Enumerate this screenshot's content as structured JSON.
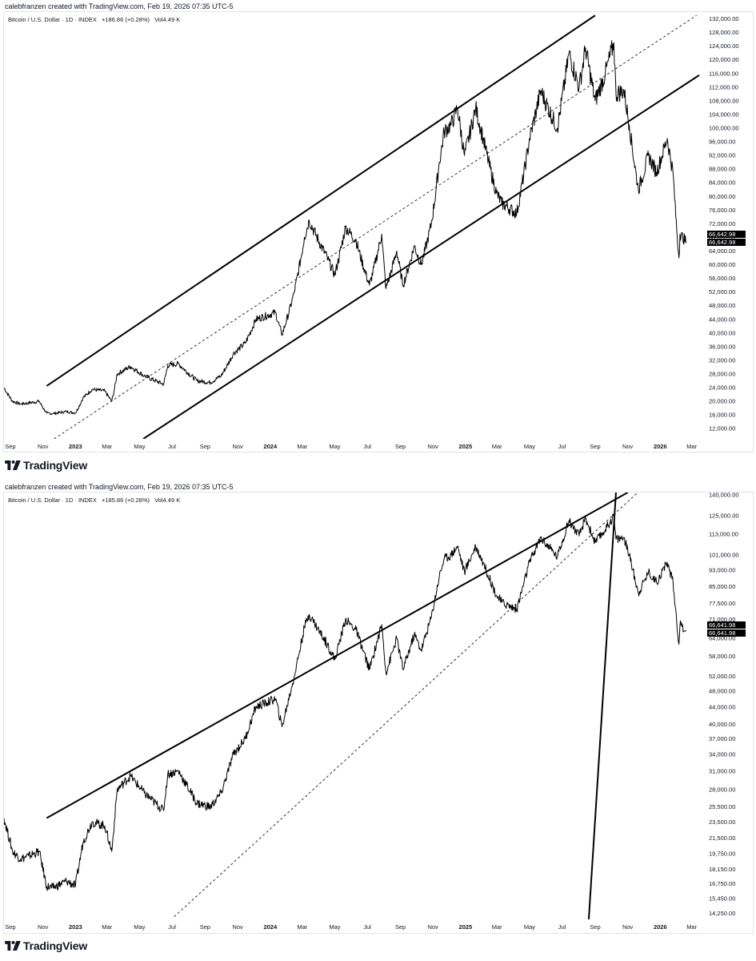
{
  "brand": {
    "name": "TradingView",
    "logo_icon": "tradingview-logo-icon",
    "text_color": "#131722"
  },
  "colors": {
    "price_line": "#000000",
    "trendline": "#000000",
    "dashed_line": "#000000",
    "last_price_tag_bg": "#000000",
    "last_price_tag_text": "#ffffff",
    "background": "#ffffff",
    "border": "#e0e3eb"
  },
  "chart_data": [
    {
      "type": "line",
      "credit": "calebfranzen created with TradingView.com, Feb 19, 2026 07:35 UTC-5",
      "legend": {
        "symbol": "Bitcoin / U.S. Dollar · 1D · INDEX",
        "change": "+186.86 (+0.28%)",
        "volume_label": "Vol",
        "volume": "4.49 K"
      },
      "scale": "linear",
      "grid": false,
      "legend_position": "top-left",
      "ylim": [
        9000,
        134000
      ],
      "xlim": [
        "2022-08-20",
        "2026-03-21"
      ],
      "x_ticks": [
        "Sep",
        "Nov",
        "2023",
        "Mar",
        "May",
        "Jul",
        "Sep",
        "Nov",
        "2024",
        "Mar",
        "May",
        "Jul",
        "Sep",
        "Nov",
        "2025",
        "Mar",
        "May",
        "Jul",
        "Sep",
        "Nov",
        "2026",
        "Mar"
      ],
      "x_tick_dates": [
        "2022-09-01",
        "2022-11-01",
        "2023-01-01",
        "2023-03-01",
        "2023-05-01",
        "2023-07-01",
        "2023-09-01",
        "2023-11-01",
        "2024-01-01",
        "2024-03-01",
        "2024-05-01",
        "2024-07-01",
        "2024-09-01",
        "2024-11-01",
        "2025-01-01",
        "2025-03-01",
        "2025-05-01",
        "2025-07-01",
        "2025-09-01",
        "2025-11-01",
        "2026-01-01",
        "2026-03-01"
      ],
      "y_ticks": [
        "132,000.00",
        "128,000.00",
        "124,000.00",
        "120,000.00",
        "116,000.00",
        "112,000.00",
        "108,000.00",
        "104,000.00",
        "100,000.00",
        "96,000.00",
        "92,000.00",
        "88,000.00",
        "84,000.00",
        "80,000.00",
        "76,000.00",
        "72,000.00",
        "68,000.00",
        "64,000.00",
        "60,000.00",
        "56,000.00",
        "52,000.00",
        "48,000.00",
        "44,000.00",
        "40,000.00",
        "36,000.00",
        "32,000.00",
        "28,000.00",
        "24,000.00",
        "20,000.00",
        "16,000.00",
        "12,000.00"
      ],
      "y_tick_values": [
        132000,
        128000,
        124000,
        120000,
        116000,
        112000,
        108000,
        104000,
        100000,
        96000,
        92000,
        88000,
        84000,
        80000,
        76000,
        72000,
        68000,
        64000,
        60000,
        56000,
        52000,
        48000,
        44000,
        40000,
        36000,
        32000,
        28000,
        24000,
        20000,
        16000,
        12000
      ],
      "last_price_tags": [
        "66,642.98",
        "66,642.98"
      ],
      "series": [
        {
          "x": [
            "2022-08-20",
            "2022-09-05",
            "2022-09-20",
            "2022-10-05",
            "2022-10-25",
            "2022-11-08",
            "2022-11-20",
            "2022-12-15",
            "2023-01-01",
            "2023-01-15",
            "2023-02-01",
            "2023-02-25",
            "2023-03-10",
            "2023-03-20",
            "2023-04-14",
            "2023-05-10",
            "2023-06-15",
            "2023-06-23",
            "2023-07-13",
            "2023-08-17",
            "2023-09-11",
            "2023-10-01",
            "2023-10-24",
            "2023-11-15",
            "2023-12-05",
            "2024-01-11",
            "2024-01-23",
            "2024-02-15",
            "2024-03-05",
            "2024-03-14",
            "2024-04-17",
            "2024-05-01",
            "2024-05-21",
            "2024-06-10",
            "2024-07-05",
            "2024-07-28",
            "2024-08-05",
            "2024-08-25",
            "2024-09-06",
            "2024-09-27",
            "2024-10-10",
            "2024-10-29",
            "2024-11-13",
            "2024-11-22",
            "2024-12-05",
            "2024-12-17",
            "2024-12-30",
            "2025-01-20",
            "2025-02-03",
            "2025-02-28",
            "2025-03-10",
            "2025-04-07",
            "2025-05-01",
            "2025-05-22",
            "2025-06-22",
            "2025-07-14",
            "2025-08-02",
            "2025-08-14",
            "2025-09-01",
            "2025-09-20",
            "2025-10-06",
            "2025-10-10",
            "2025-10-25",
            "2025-11-04",
            "2025-11-21",
            "2025-12-10",
            "2025-12-25",
            "2026-01-14",
            "2026-01-25",
            "2026-02-05",
            "2026-02-07",
            "2026-02-19"
          ],
          "values": [
            24000,
            20000,
            19200,
            19500,
            20000,
            16500,
            16400,
            17000,
            16600,
            21000,
            23500,
            23000,
            20000,
            28000,
            30200,
            27500,
            25000,
            30500,
            31000,
            26000,
            25500,
            27500,
            34000,
            37000,
            44000,
            46000,
            39500,
            52000,
            68000,
            73000,
            62000,
            57000,
            71000,
            67000,
            54000,
            69000,
            53000,
            64000,
            54000,
            65500,
            60000,
            72000,
            90000,
            99000,
            101000,
            106000,
            92000,
            106000,
            97000,
            81000,
            78000,
            75000,
            97000,
            111000,
            100000,
            122000,
            112000,
            123500,
            108000,
            116000,
            125000,
            110000,
            111000,
            101000,
            82000,
            92000,
            87000,
            97000,
            87000,
            62000,
            69000,
            66643
          ]
        }
      ],
      "annotations": [
        {
          "kind": "trendline",
          "style": "solid",
          "x": [
            "2022-11-08",
            "2025-09-01"
          ],
          "y": [
            24500,
            133000
          ]
        },
        {
          "kind": "trendline",
          "style": "solid",
          "x": [
            "2023-05-08",
            "2026-03-15"
          ],
          "y": [
            9000,
            115500
          ]
        },
        {
          "kind": "trendline",
          "style": "dashed",
          "x": [
            "2022-11-22",
            "2026-03-10"
          ],
          "y": [
            9000,
            133000
          ]
        }
      ]
    },
    {
      "type": "line",
      "credit": "calebfranzen created with TradingView.com, Feb 19, 2026 07:35 UTC-5",
      "legend": {
        "symbol": "Bitcoin / U.S. Dollar · 1D · INDEX",
        "change": "+185.86 (+0.28%)",
        "volume_label": "Vol",
        "volume": "4.49 K"
      },
      "scale": "log",
      "grid": false,
      "legend_position": "top-left",
      "ylim": [
        13800,
        142000
      ],
      "xlim": [
        "2022-08-20",
        "2026-03-21"
      ],
      "x_ticks": [
        "Sep",
        "Nov",
        "2023",
        "Mar",
        "May",
        "Jul",
        "Sep",
        "Nov",
        "2024",
        "Mar",
        "May",
        "Jul",
        "Sep",
        "Nov",
        "2025",
        "Mar",
        "May",
        "Jul",
        "Sep",
        "Nov",
        "2026",
        "Mar"
      ],
      "x_tick_dates": [
        "2022-09-01",
        "2022-11-01",
        "2023-01-01",
        "2023-03-01",
        "2023-05-01",
        "2023-07-01",
        "2023-09-01",
        "2023-11-01",
        "2024-01-01",
        "2024-03-01",
        "2024-05-01",
        "2024-07-01",
        "2024-09-01",
        "2024-11-01",
        "2025-01-01",
        "2025-03-01",
        "2025-05-01",
        "2025-07-01",
        "2025-09-01",
        "2025-11-01",
        "2026-01-01",
        "2026-03-01"
      ],
      "y_ticks": [
        "140,000.00",
        "125,000.00",
        "113,000.00",
        "101,000.00",
        "93,000.00",
        "85,000.00",
        "77,500.00",
        "71,000.00",
        "64,000.00",
        "58,000.00",
        "52,000.00",
        "48,000.00",
        "44,000.00",
        "40,000.00",
        "37,000.00",
        "34,000.00",
        "31,000.00",
        "28,000.00",
        "25,500.00",
        "23,500.00",
        "21,500.00",
        "19,750.00",
        "18,150.00",
        "16,750.00",
        "15,450.00",
        "14,250.00"
      ],
      "y_tick_values": [
        140000,
        125000,
        113000,
        101000,
        93000,
        85000,
        77500,
        71000,
        64000,
        58000,
        52000,
        48000,
        44000,
        40000,
        37000,
        34000,
        31000,
        28000,
        25500,
        23500,
        21500,
        19750,
        18150,
        16750,
        15450,
        14250
      ],
      "last_price_tags": [
        "66,641.98",
        "66,641.98"
      ],
      "series": [
        {
          "x": [
            "2022-08-20",
            "2022-09-05",
            "2022-09-20",
            "2022-10-05",
            "2022-10-25",
            "2022-11-08",
            "2022-11-20",
            "2022-12-15",
            "2023-01-01",
            "2023-01-15",
            "2023-02-01",
            "2023-02-25",
            "2023-03-10",
            "2023-03-20",
            "2023-04-14",
            "2023-05-10",
            "2023-06-15",
            "2023-06-23",
            "2023-07-13",
            "2023-08-17",
            "2023-09-11",
            "2023-10-01",
            "2023-10-24",
            "2023-11-15",
            "2023-12-05",
            "2024-01-11",
            "2024-01-23",
            "2024-02-15",
            "2024-03-05",
            "2024-03-14",
            "2024-04-17",
            "2024-05-01",
            "2024-05-21",
            "2024-06-10",
            "2024-07-05",
            "2024-07-28",
            "2024-08-05",
            "2024-08-25",
            "2024-09-06",
            "2024-09-27",
            "2024-10-10",
            "2024-10-29",
            "2024-11-13",
            "2024-11-22",
            "2024-12-05",
            "2024-12-17",
            "2024-12-30",
            "2025-01-20",
            "2025-02-03",
            "2025-02-28",
            "2025-03-10",
            "2025-04-07",
            "2025-05-01",
            "2025-05-22",
            "2025-06-22",
            "2025-07-14",
            "2025-08-02",
            "2025-08-14",
            "2025-09-01",
            "2025-09-20",
            "2025-10-06",
            "2025-10-10",
            "2025-10-25",
            "2025-11-04",
            "2025-11-21",
            "2025-12-10",
            "2025-12-25",
            "2026-01-14",
            "2026-01-25",
            "2026-02-05",
            "2026-02-07",
            "2026-02-19"
          ],
          "values": [
            24000,
            20000,
            19200,
            19500,
            20000,
            16500,
            16400,
            17000,
            16600,
            21000,
            23500,
            23000,
            20000,
            28000,
            30200,
            27500,
            25000,
            30500,
            31000,
            26000,
            25500,
            27500,
            34000,
            37000,
            44000,
            46000,
            39500,
            52000,
            68000,
            73000,
            62000,
            57000,
            71000,
            67000,
            54000,
            69000,
            53000,
            64000,
            54000,
            65500,
            60000,
            72000,
            90000,
            99000,
            101000,
            106000,
            92000,
            106000,
            97000,
            81000,
            78000,
            75000,
            97000,
            111000,
            100000,
            122000,
            112000,
            123500,
            108000,
            116000,
            125000,
            110000,
            111000,
            101000,
            82000,
            92000,
            87000,
            97000,
            87000,
            62000,
            69000,
            66642
          ]
        }
      ],
      "annotations": [
        {
          "kind": "trendline",
          "style": "solid",
          "x": [
            "2022-11-08",
            "2025-11-01"
          ],
          "y": [
            24000,
            142000
          ]
        },
        {
          "kind": "trendline",
          "style": "dashed",
          "x": [
            "2023-07-05",
            "2025-11-20"
          ],
          "y": [
            14000,
            142000
          ]
        },
        {
          "kind": "trendline",
          "style": "solid",
          "x": [
            "2025-08-20",
            "2025-10-10"
          ],
          "y": [
            13800,
            142000
          ]
        }
      ]
    }
  ]
}
